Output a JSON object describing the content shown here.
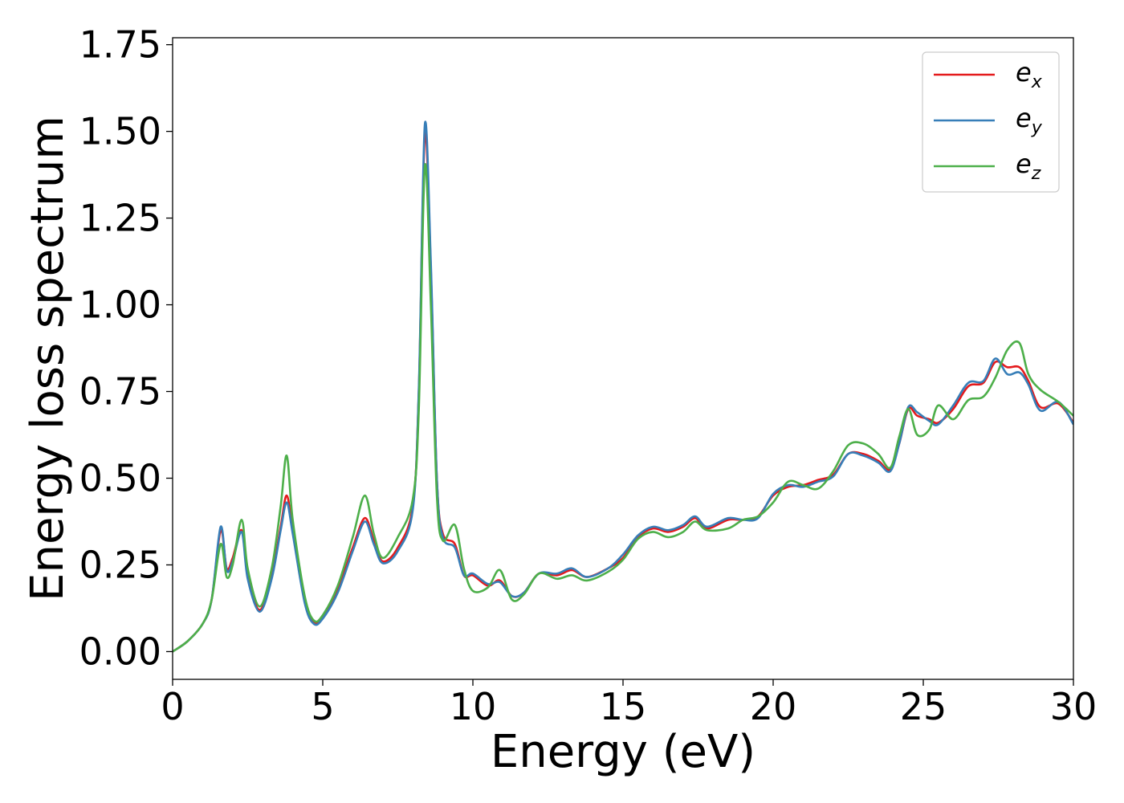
{
  "chart_data": {
    "type": "line",
    "title": "",
    "xlabel": "Energy (eV)",
    "ylabel": "Energy loss spectrum",
    "xlim": [
      0,
      30
    ],
    "ylim": [
      -0.08,
      1.77
    ],
    "xticks": [
      0,
      5,
      10,
      15,
      20,
      25,
      30
    ],
    "yticks": [
      0.0,
      0.25,
      0.5,
      0.75,
      1.0,
      1.25,
      1.5,
      1.75
    ],
    "xtick_labels": [
      "0",
      "5",
      "10",
      "15",
      "20",
      "25",
      "30"
    ],
    "ytick_labels": [
      "0.00",
      "0.25",
      "0.50",
      "0.75",
      "1.00",
      "1.25",
      "1.50",
      "1.75"
    ],
    "grid": false,
    "legend_position": "top-right",
    "series": [
      {
        "name": "e_x",
        "legend_base": "e",
        "legend_sub": "x",
        "color": "#e41a1c",
        "points": [
          [
            0,
            0
          ],
          [
            0.5,
            0.03
          ],
          [
            1.0,
            0.08
          ],
          [
            1.3,
            0.15
          ],
          [
            1.6,
            0.35
          ],
          [
            1.8,
            0.24
          ],
          [
            2.0,
            0.27
          ],
          [
            2.3,
            0.35
          ],
          [
            2.5,
            0.22
          ],
          [
            2.9,
            0.12
          ],
          [
            3.3,
            0.22
          ],
          [
            3.6,
            0.36
          ],
          [
            3.8,
            0.45
          ],
          [
            4.0,
            0.35
          ],
          [
            4.4,
            0.15
          ],
          [
            4.7,
            0.085
          ],
          [
            5.0,
            0.1
          ],
          [
            5.5,
            0.18
          ],
          [
            6.0,
            0.3
          ],
          [
            6.4,
            0.385
          ],
          [
            6.7,
            0.32
          ],
          [
            7.0,
            0.26
          ],
          [
            7.5,
            0.3
          ],
          [
            8.0,
            0.42
          ],
          [
            8.2,
            0.75
          ],
          [
            8.4,
            1.49
          ],
          [
            8.6,
            1.1
          ],
          [
            8.8,
            0.5
          ],
          [
            9.0,
            0.34
          ],
          [
            9.4,
            0.31
          ],
          [
            9.7,
            0.22
          ],
          [
            10.0,
            0.22
          ],
          [
            10.5,
            0.19
          ],
          [
            10.9,
            0.205
          ],
          [
            11.3,
            0.16
          ],
          [
            11.7,
            0.17
          ],
          [
            12.2,
            0.225
          ],
          [
            12.8,
            0.22
          ],
          [
            13.3,
            0.235
          ],
          [
            13.8,
            0.215
          ],
          [
            14.5,
            0.24
          ],
          [
            15.0,
            0.27
          ],
          [
            15.5,
            0.33
          ],
          [
            16.0,
            0.355
          ],
          [
            16.5,
            0.345
          ],
          [
            17.0,
            0.36
          ],
          [
            17.4,
            0.385
          ],
          [
            17.8,
            0.355
          ],
          [
            18.5,
            0.38
          ],
          [
            19.0,
            0.38
          ],
          [
            19.5,
            0.39
          ],
          [
            20.0,
            0.45
          ],
          [
            20.5,
            0.475
          ],
          [
            21.0,
            0.48
          ],
          [
            21.5,
            0.495
          ],
          [
            22.0,
            0.51
          ],
          [
            22.5,
            0.57
          ],
          [
            23.0,
            0.57
          ],
          [
            23.5,
            0.55
          ],
          [
            23.9,
            0.525
          ],
          [
            24.2,
            0.6
          ],
          [
            24.5,
            0.7
          ],
          [
            24.8,
            0.68
          ],
          [
            25.2,
            0.67
          ],
          [
            25.5,
            0.66
          ],
          [
            26.0,
            0.7
          ],
          [
            26.5,
            0.765
          ],
          [
            27.0,
            0.775
          ],
          [
            27.4,
            0.835
          ],
          [
            27.8,
            0.82
          ],
          [
            28.2,
            0.82
          ],
          [
            28.5,
            0.78
          ],
          [
            28.9,
            0.705
          ],
          [
            29.5,
            0.715
          ],
          [
            30.0,
            0.66
          ]
        ]
      },
      {
        "name": "e_y",
        "legend_base": "e",
        "legend_sub": "y",
        "color": "#377eb8",
        "points": [
          [
            0,
            0
          ],
          [
            0.5,
            0.03
          ],
          [
            1.0,
            0.08
          ],
          [
            1.3,
            0.15
          ],
          [
            1.6,
            0.36
          ],
          [
            1.8,
            0.235
          ],
          [
            2.0,
            0.26
          ],
          [
            2.3,
            0.345
          ],
          [
            2.5,
            0.21
          ],
          [
            2.9,
            0.115
          ],
          [
            3.3,
            0.21
          ],
          [
            3.6,
            0.35
          ],
          [
            3.8,
            0.43
          ],
          [
            4.0,
            0.34
          ],
          [
            4.4,
            0.14
          ],
          [
            4.7,
            0.08
          ],
          [
            5.0,
            0.095
          ],
          [
            5.5,
            0.17
          ],
          [
            6.0,
            0.29
          ],
          [
            6.4,
            0.375
          ],
          [
            6.7,
            0.31
          ],
          [
            7.0,
            0.255
          ],
          [
            7.5,
            0.29
          ],
          [
            8.0,
            0.41
          ],
          [
            8.2,
            0.76
          ],
          [
            8.4,
            1.52
          ],
          [
            8.6,
            1.12
          ],
          [
            8.8,
            0.5
          ],
          [
            9.0,
            0.33
          ],
          [
            9.4,
            0.3
          ],
          [
            9.7,
            0.22
          ],
          [
            10.0,
            0.225
          ],
          [
            10.5,
            0.195
          ],
          [
            10.9,
            0.2
          ],
          [
            11.3,
            0.16
          ],
          [
            11.7,
            0.17
          ],
          [
            12.2,
            0.225
          ],
          [
            12.8,
            0.225
          ],
          [
            13.3,
            0.24
          ],
          [
            13.8,
            0.215
          ],
          [
            14.5,
            0.24
          ],
          [
            15.0,
            0.28
          ],
          [
            15.5,
            0.335
          ],
          [
            16.0,
            0.36
          ],
          [
            16.5,
            0.35
          ],
          [
            17.0,
            0.365
          ],
          [
            17.4,
            0.39
          ],
          [
            17.8,
            0.36
          ],
          [
            18.5,
            0.385
          ],
          [
            19.0,
            0.38
          ],
          [
            19.5,
            0.385
          ],
          [
            20.0,
            0.455
          ],
          [
            20.5,
            0.48
          ],
          [
            21.0,
            0.475
          ],
          [
            21.5,
            0.49
          ],
          [
            22.0,
            0.505
          ],
          [
            22.5,
            0.57
          ],
          [
            23.0,
            0.565
          ],
          [
            23.5,
            0.545
          ],
          [
            23.9,
            0.52
          ],
          [
            24.2,
            0.6
          ],
          [
            24.5,
            0.705
          ],
          [
            24.8,
            0.69
          ],
          [
            25.2,
            0.665
          ],
          [
            25.5,
            0.655
          ],
          [
            26.0,
            0.71
          ],
          [
            26.5,
            0.775
          ],
          [
            27.0,
            0.78
          ],
          [
            27.4,
            0.845
          ],
          [
            27.8,
            0.8
          ],
          [
            28.2,
            0.805
          ],
          [
            28.5,
            0.77
          ],
          [
            28.9,
            0.695
          ],
          [
            29.5,
            0.72
          ],
          [
            30.0,
            0.655
          ]
        ]
      },
      {
        "name": "e_z",
        "legend_base": "e",
        "legend_sub": "z",
        "color": "#4daf4a",
        "points": [
          [
            0,
            0
          ],
          [
            0.5,
            0.03
          ],
          [
            1.0,
            0.08
          ],
          [
            1.3,
            0.15
          ],
          [
            1.6,
            0.31
          ],
          [
            1.8,
            0.215
          ],
          [
            2.0,
            0.25
          ],
          [
            2.3,
            0.38
          ],
          [
            2.5,
            0.24
          ],
          [
            2.9,
            0.13
          ],
          [
            3.3,
            0.24
          ],
          [
            3.6,
            0.42
          ],
          [
            3.8,
            0.565
          ],
          [
            4.0,
            0.38
          ],
          [
            4.4,
            0.16
          ],
          [
            4.7,
            0.09
          ],
          [
            5.0,
            0.105
          ],
          [
            5.5,
            0.19
          ],
          [
            6.0,
            0.33
          ],
          [
            6.4,
            0.45
          ],
          [
            6.7,
            0.34
          ],
          [
            7.0,
            0.27
          ],
          [
            7.5,
            0.33
          ],
          [
            8.0,
            0.44
          ],
          [
            8.2,
            0.7
          ],
          [
            8.4,
            1.4
          ],
          [
            8.6,
            1.0
          ],
          [
            8.8,
            0.45
          ],
          [
            9.0,
            0.32
          ],
          [
            9.4,
            0.365
          ],
          [
            9.7,
            0.24
          ],
          [
            10.0,
            0.175
          ],
          [
            10.5,
            0.185
          ],
          [
            10.9,
            0.235
          ],
          [
            11.3,
            0.15
          ],
          [
            11.7,
            0.165
          ],
          [
            12.2,
            0.225
          ],
          [
            12.8,
            0.21
          ],
          [
            13.3,
            0.22
          ],
          [
            13.8,
            0.205
          ],
          [
            14.5,
            0.23
          ],
          [
            15.0,
            0.265
          ],
          [
            15.5,
            0.325
          ],
          [
            16.0,
            0.345
          ],
          [
            16.5,
            0.33
          ],
          [
            17.0,
            0.345
          ],
          [
            17.4,
            0.375
          ],
          [
            17.8,
            0.35
          ],
          [
            18.5,
            0.355
          ],
          [
            19.0,
            0.38
          ],
          [
            19.5,
            0.39
          ],
          [
            20.0,
            0.43
          ],
          [
            20.5,
            0.49
          ],
          [
            21.0,
            0.48
          ],
          [
            21.5,
            0.47
          ],
          [
            22.0,
            0.52
          ],
          [
            22.5,
            0.595
          ],
          [
            23.0,
            0.6
          ],
          [
            23.5,
            0.57
          ],
          [
            23.9,
            0.53
          ],
          [
            24.2,
            0.62
          ],
          [
            24.5,
            0.7
          ],
          [
            24.8,
            0.625
          ],
          [
            25.2,
            0.64
          ],
          [
            25.5,
            0.71
          ],
          [
            26.0,
            0.67
          ],
          [
            26.5,
            0.725
          ],
          [
            27.0,
            0.735
          ],
          [
            27.4,
            0.79
          ],
          [
            27.8,
            0.87
          ],
          [
            28.2,
            0.89
          ],
          [
            28.5,
            0.8
          ],
          [
            28.9,
            0.755
          ],
          [
            29.5,
            0.72
          ],
          [
            30.0,
            0.68
          ]
        ]
      }
    ]
  }
}
